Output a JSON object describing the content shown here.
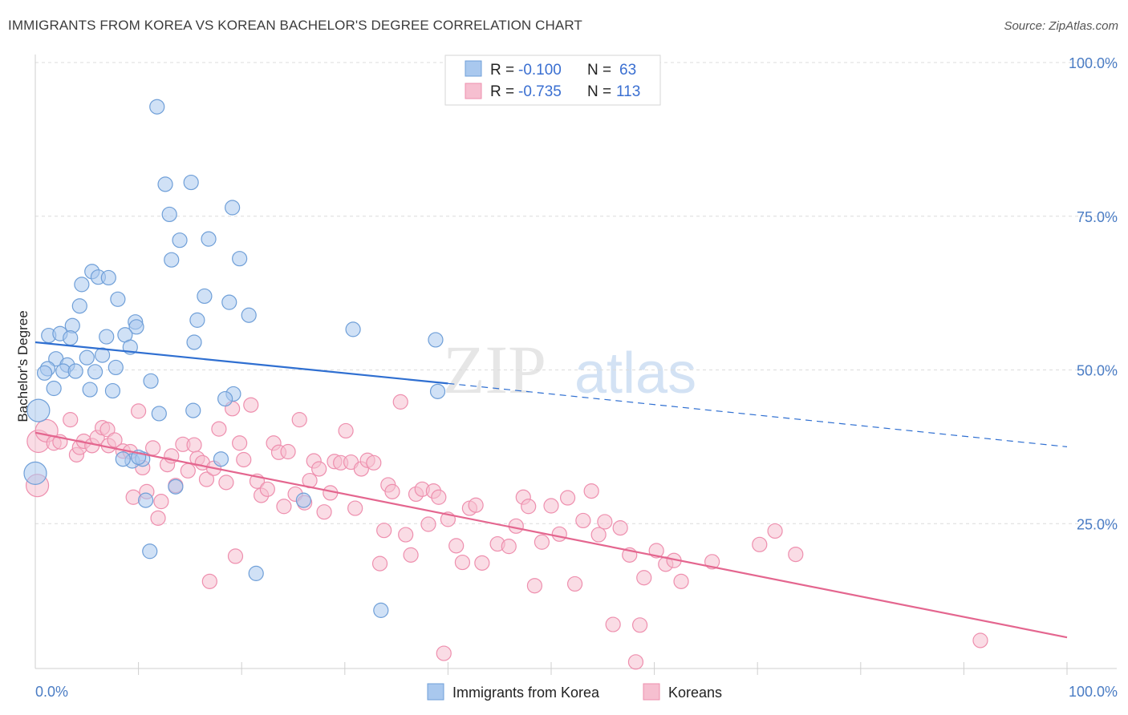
{
  "title": "IMMIGRANTS FROM KOREA VS KOREAN BACHELOR'S DEGREE CORRELATION CHART",
  "source": "Source: ZipAtlas.com",
  "watermark": {
    "zip": "ZIP",
    "atlas": "atlas"
  },
  "colors": {
    "blue_fill": "#a9c8ee",
    "blue_stroke": "#6f9fd8",
    "blue_line": "#2f6fd1",
    "pink_fill": "#f6bfd0",
    "pink_stroke": "#ee8fae",
    "pink_line": "#e4668f",
    "axis_text": "#4a7cc4",
    "grid": "#dcdcdc"
  },
  "legend": {
    "rows": [
      {
        "r_label": "R = ",
        "r_value": "-0.100",
        "n_label": "N = ",
        "n_value": "63"
      },
      {
        "r_label": "R = ",
        "r_value": "-0.735",
        "n_label": "N = ",
        "n_value": "113"
      }
    ]
  },
  "chart_data": {
    "type": "scatter",
    "xlabel": "",
    "ylabel": "Bachelor's Degree",
    "xlim": [
      0,
      100
    ],
    "ylim": [
      0,
      100
    ],
    "x_tick_labels": [
      "0.0%",
      "100.0%"
    ],
    "y_tick_labels": [
      {
        "value": 25,
        "label": "25.0%"
      },
      {
        "value": 50,
        "label": "50.0%"
      },
      {
        "value": 75,
        "label": "75.0%"
      },
      {
        "value": 100,
        "label": "100.0%"
      }
    ],
    "grid": "horizontal dashed",
    "legend_position": "top-center",
    "series": [
      {
        "name": "Immigrants from Korea",
        "color": "#a9c8ee",
        "trend": {
          "x0": 0,
          "y0": 54.5,
          "x1": 40,
          "y1": 47.8,
          "dash_to_x": 100,
          "dash_to_y": 37.5
        },
        "points": [
          [
            11.8,
            92.8
          ],
          [
            12.6,
            80.2
          ],
          [
            15.1,
            80.5
          ],
          [
            13.0,
            75.3
          ],
          [
            19.1,
            76.4
          ],
          [
            14.0,
            71.1
          ],
          [
            16.8,
            71.3
          ],
          [
            13.2,
            67.9
          ],
          [
            19.8,
            68.1
          ],
          [
            5.5,
            66.0
          ],
          [
            4.5,
            63.9
          ],
          [
            6.1,
            65.1
          ],
          [
            7.1,
            65.0
          ],
          [
            8.0,
            61.5
          ],
          [
            16.4,
            62.0
          ],
          [
            18.8,
            61.0
          ],
          [
            4.3,
            60.4
          ],
          [
            20.7,
            58.9
          ],
          [
            15.7,
            58.1
          ],
          [
            9.7,
            57.8
          ],
          [
            3.6,
            57.2
          ],
          [
            9.8,
            57.0
          ],
          [
            1.3,
            55.6
          ],
          [
            2.4,
            55.9
          ],
          [
            6.9,
            55.4
          ],
          [
            8.7,
            55.7
          ],
          [
            30.8,
            56.6
          ],
          [
            38.8,
            54.9
          ],
          [
            3.4,
            55.2
          ],
          [
            15.4,
            54.5
          ],
          [
            9.2,
            53.7
          ],
          [
            6.5,
            52.4
          ],
          [
            2.0,
            51.8
          ],
          [
            5.0,
            52.0
          ],
          [
            3.1,
            50.8
          ],
          [
            1.2,
            50.2
          ],
          [
            0.9,
            49.5
          ],
          [
            2.7,
            49.8
          ],
          [
            3.9,
            49.8
          ],
          [
            5.8,
            49.7
          ],
          [
            7.8,
            50.4
          ],
          [
            11.2,
            48.2
          ],
          [
            1.8,
            47.0
          ],
          [
            5.3,
            46.8
          ],
          [
            7.5,
            46.6
          ],
          [
            19.2,
            46.1
          ],
          [
            18.4,
            45.3
          ],
          [
            39.0,
            46.5
          ],
          [
            0.3,
            43.4
          ],
          [
            12.0,
            42.9
          ],
          [
            15.3,
            43.4
          ],
          [
            9.4,
            35.2
          ],
          [
            8.5,
            35.5
          ],
          [
            10.4,
            35.5
          ],
          [
            18.0,
            35.5
          ],
          [
            0.0,
            33.2
          ],
          [
            13.6,
            31.0
          ],
          [
            10.7,
            28.8
          ],
          [
            26.0,
            28.8
          ],
          [
            11.1,
            20.5
          ],
          [
            21.4,
            16.9
          ],
          [
            33.5,
            10.9
          ],
          [
            10.0,
            35.8
          ]
        ]
      },
      {
        "name": "Koreans",
        "color": "#f6bfd0",
        "trend": {
          "x0": 0,
          "y0": 39.8,
          "x1": 100,
          "y1": 6.5
        },
        "points": [
          [
            0.3,
            38.4
          ],
          [
            0.2,
            31.2
          ],
          [
            1.1,
            40.1
          ],
          [
            1.8,
            38.1
          ],
          [
            2.4,
            38.3
          ],
          [
            3.4,
            41.9
          ],
          [
            4.0,
            36.2
          ],
          [
            4.3,
            37.4
          ],
          [
            4.7,
            38.4
          ],
          [
            5.5,
            37.7
          ],
          [
            6.0,
            39.0
          ],
          [
            6.5,
            40.6
          ],
          [
            7.0,
            40.3
          ],
          [
            7.1,
            37.7
          ],
          [
            7.7,
            38.6
          ],
          [
            8.5,
            36.8
          ],
          [
            9.2,
            36.7
          ],
          [
            9.5,
            29.3
          ],
          [
            10.0,
            43.3
          ],
          [
            10.4,
            34.1
          ],
          [
            10.8,
            30.2
          ],
          [
            11.4,
            37.3
          ],
          [
            11.9,
            25.9
          ],
          [
            12.2,
            28.6
          ],
          [
            12.8,
            34.6
          ],
          [
            13.2,
            36.0
          ],
          [
            13.6,
            31.2
          ],
          [
            14.3,
            37.9
          ],
          [
            14.8,
            33.6
          ],
          [
            15.4,
            37.8
          ],
          [
            15.7,
            35.6
          ],
          [
            16.2,
            34.9
          ],
          [
            16.6,
            32.2
          ],
          [
            16.9,
            15.6
          ],
          [
            17.3,
            34.0
          ],
          [
            17.8,
            40.4
          ],
          [
            18.5,
            31.7
          ],
          [
            19.1,
            43.7
          ],
          [
            19.4,
            19.7
          ],
          [
            19.8,
            38.1
          ],
          [
            20.2,
            35.4
          ],
          [
            20.9,
            44.3
          ],
          [
            21.5,
            31.9
          ],
          [
            21.9,
            29.6
          ],
          [
            22.5,
            30.6
          ],
          [
            23.1,
            38.1
          ],
          [
            23.6,
            36.6
          ],
          [
            24.1,
            27.8
          ],
          [
            24.5,
            36.7
          ],
          [
            25.2,
            29.8
          ],
          [
            25.6,
            41.9
          ],
          [
            26.1,
            28.4
          ],
          [
            26.6,
            32.0
          ],
          [
            27.0,
            35.2
          ],
          [
            27.5,
            33.9
          ],
          [
            28.0,
            26.9
          ],
          [
            28.6,
            30.0
          ],
          [
            29.0,
            35.1
          ],
          [
            29.6,
            34.9
          ],
          [
            30.1,
            40.1
          ],
          [
            30.6,
            35.0
          ],
          [
            31.0,
            27.5
          ],
          [
            31.6,
            33.9
          ],
          [
            32.2,
            35.3
          ],
          [
            32.8,
            34.9
          ],
          [
            33.4,
            18.5
          ],
          [
            33.8,
            23.9
          ],
          [
            34.2,
            31.3
          ],
          [
            34.6,
            30.2
          ],
          [
            35.4,
            44.8
          ],
          [
            35.9,
            23.2
          ],
          [
            36.4,
            19.9
          ],
          [
            36.9,
            29.8
          ],
          [
            37.5,
            30.6
          ],
          [
            38.1,
            24.9
          ],
          [
            38.6,
            30.3
          ],
          [
            39.1,
            29.3
          ],
          [
            39.6,
            3.9
          ],
          [
            40.0,
            25.7
          ],
          [
            40.8,
            21.4
          ],
          [
            41.4,
            18.7
          ],
          [
            42.1,
            27.5
          ],
          [
            42.7,
            28.0
          ],
          [
            43.3,
            18.6
          ],
          [
            44.8,
            21.7
          ],
          [
            45.9,
            21.3
          ],
          [
            46.6,
            24.6
          ],
          [
            47.3,
            29.3
          ],
          [
            47.8,
            27.8
          ],
          [
            48.4,
            14.9
          ],
          [
            49.1,
            22.0
          ],
          [
            50.0,
            27.9
          ],
          [
            50.8,
            23.3
          ],
          [
            51.6,
            29.2
          ],
          [
            52.3,
            15.2
          ],
          [
            53.1,
            25.5
          ],
          [
            53.9,
            30.3
          ],
          [
            54.6,
            23.2
          ],
          [
            55.2,
            25.3
          ],
          [
            56.0,
            8.6
          ],
          [
            56.7,
            24.3
          ],
          [
            57.6,
            19.9
          ],
          [
            58.2,
            2.5
          ],
          [
            58.6,
            8.5
          ],
          [
            59.0,
            16.2
          ],
          [
            60.2,
            20.6
          ],
          [
            61.1,
            18.4
          ],
          [
            61.9,
            19.0
          ],
          [
            62.6,
            15.6
          ],
          [
            65.6,
            18.8
          ],
          [
            70.2,
            21.6
          ],
          [
            71.7,
            23.8
          ],
          [
            73.7,
            20.0
          ],
          [
            91.6,
            6.0
          ]
        ]
      }
    ]
  },
  "bottom_legend": [
    "Immigrants from Korea",
    "Koreans"
  ]
}
